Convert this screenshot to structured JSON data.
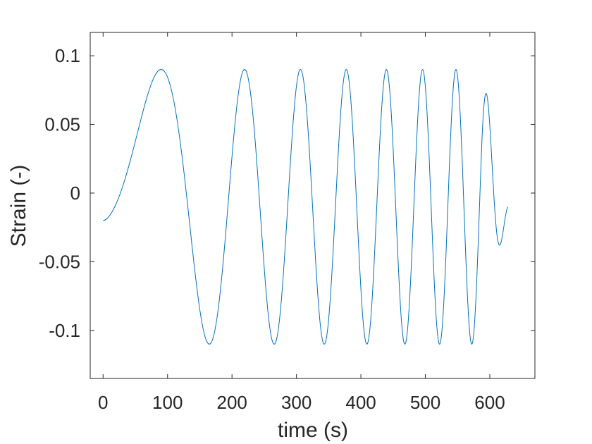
{
  "chart_data": {
    "type": "line",
    "title": "",
    "xlabel": "time (s)",
    "ylabel": "Strain (-)",
    "xlim": [
      -20,
      670
    ],
    "ylim": [
      -0.135,
      0.117
    ],
    "xticks": [
      0,
      100,
      200,
      300,
      400,
      500,
      600
    ],
    "xtick_labels": [
      "0",
      "100",
      "200",
      "300",
      "400",
      "500",
      "600"
    ],
    "yticks": [
      0.1,
      0.05,
      0,
      -0.05,
      -0.1
    ],
    "ytick_labels": [
      "0.1",
      "0.05",
      "0",
      "-0.05",
      "-0.1"
    ],
    "grid": false,
    "legend": "none",
    "box": true,
    "series": [
      {
        "color": "#0072BD",
        "description": "chirp strain signal: decaying period, offset -0.01, amplitude 0.1, decaying after ~590 s",
        "t_start": 0,
        "t_end": 628,
        "offset": -0.01,
        "amplitude": 0.1,
        "key_points": [
          {
            "x": 0,
            "y": -0.009
          },
          {
            "x": 90,
            "y": 0.09
          },
          {
            "x": 165,
            "y": -0.11
          },
          {
            "x": 206,
            "y": 0.09
          },
          {
            "x": 234,
            "y": -0.11
          },
          {
            "x": 254,
            "y": 0.09
          },
          {
            "x": 272,
            "y": -0.11
          },
          {
            "x": 287,
            "y": 0.09
          },
          {
            "x": 600,
            "y": 0.082
          },
          {
            "x": 600,
            "y": -0.1
          },
          {
            "x": 628,
            "y": -0.01
          }
        ]
      }
    ]
  }
}
